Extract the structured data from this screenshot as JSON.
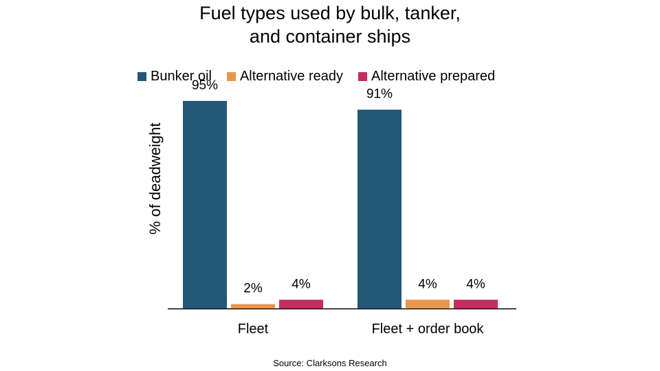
{
  "chart_data": {
    "type": "bar",
    "title": "Fuel types used by bulk, tanker, and container ships",
    "ylabel": "% of deadweight",
    "xlabel": "",
    "categories": [
      "Fleet",
      "Fleet + order book"
    ],
    "series": [
      {
        "name": "Bunker oil",
        "values": [
          95,
          91
        ],
        "labels": [
          "95%",
          "91%"
        ],
        "color": "#235878"
      },
      {
        "name": "Alternative ready",
        "values": [
          2,
          4
        ],
        "labels": [
          "2%",
          "4%"
        ],
        "color": "#E8964A"
      },
      {
        "name": "Alternative prepared",
        "values": [
          4,
          4
        ],
        "labels": [
          "4%",
          "4%"
        ],
        "color": "#C22E5E"
      }
    ],
    "ylim": [
      0,
      100
    ],
    "grid": false,
    "legend": "top",
    "source": "Source: Clarksons Research"
  }
}
